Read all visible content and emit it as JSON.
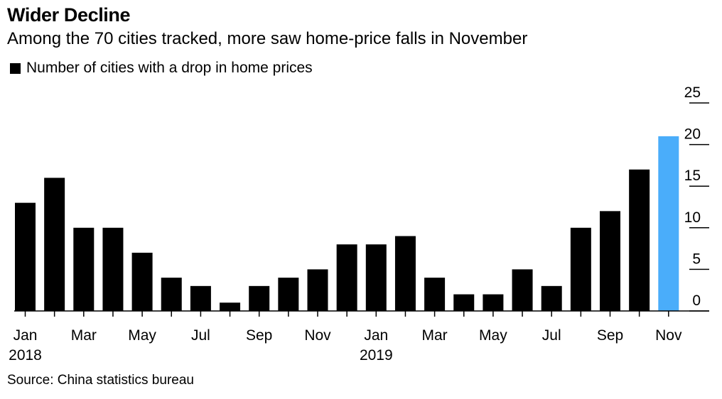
{
  "chart_data": {
    "type": "bar",
    "title": "Wider Decline",
    "subtitle": "Among the 70 cities tracked, more saw home-price falls in November",
    "legend": [
      "Number of cities with a drop in home prices"
    ],
    "source": "Source: China statistics bureau",
    "categories": [
      "Jan 2018",
      "Feb 2018",
      "Mar 2018",
      "Apr 2018",
      "May 2018",
      "Jun 2018",
      "Jul 2018",
      "Aug 2018",
      "Sep 2018",
      "Oct 2018",
      "Nov 2018",
      "Dec 2018",
      "Jan 2019",
      "Feb 2019",
      "Mar 2019",
      "Apr 2019",
      "May 2019",
      "Jun 2019",
      "Jul 2019",
      "Aug 2019",
      "Sep 2019",
      "Oct 2019",
      "Nov 2019"
    ],
    "values": [
      13,
      16,
      10,
      10,
      7,
      4,
      3,
      1,
      3,
      4,
      5,
      8,
      8,
      9,
      4,
      2,
      2,
      5,
      3,
      10,
      12,
      17,
      21
    ],
    "x_tick_labels": [
      {
        "index": 0,
        "label": "Jan",
        "sublabel": "2018"
      },
      {
        "index": 2,
        "label": "Mar"
      },
      {
        "index": 4,
        "label": "May"
      },
      {
        "index": 6,
        "label": "Jul"
      },
      {
        "index": 8,
        "label": "Sep"
      },
      {
        "index": 10,
        "label": "Nov"
      },
      {
        "index": 12,
        "label": "Jan",
        "sublabel": "2019"
      },
      {
        "index": 14,
        "label": "Mar"
      },
      {
        "index": 16,
        "label": "May"
      },
      {
        "index": 18,
        "label": "Jul"
      },
      {
        "index": 20,
        "label": "Sep"
      },
      {
        "index": 22,
        "label": "Nov"
      }
    ],
    "y_ticks": [
      0,
      5,
      10,
      15,
      20,
      25
    ],
    "ylim": [
      0,
      25
    ],
    "y_axis_side": "right",
    "grid": false,
    "colors": {
      "bar": "#000000",
      "highlight": "#4aadfa",
      "axis": "#000000"
    },
    "highlight_index": 22
  }
}
